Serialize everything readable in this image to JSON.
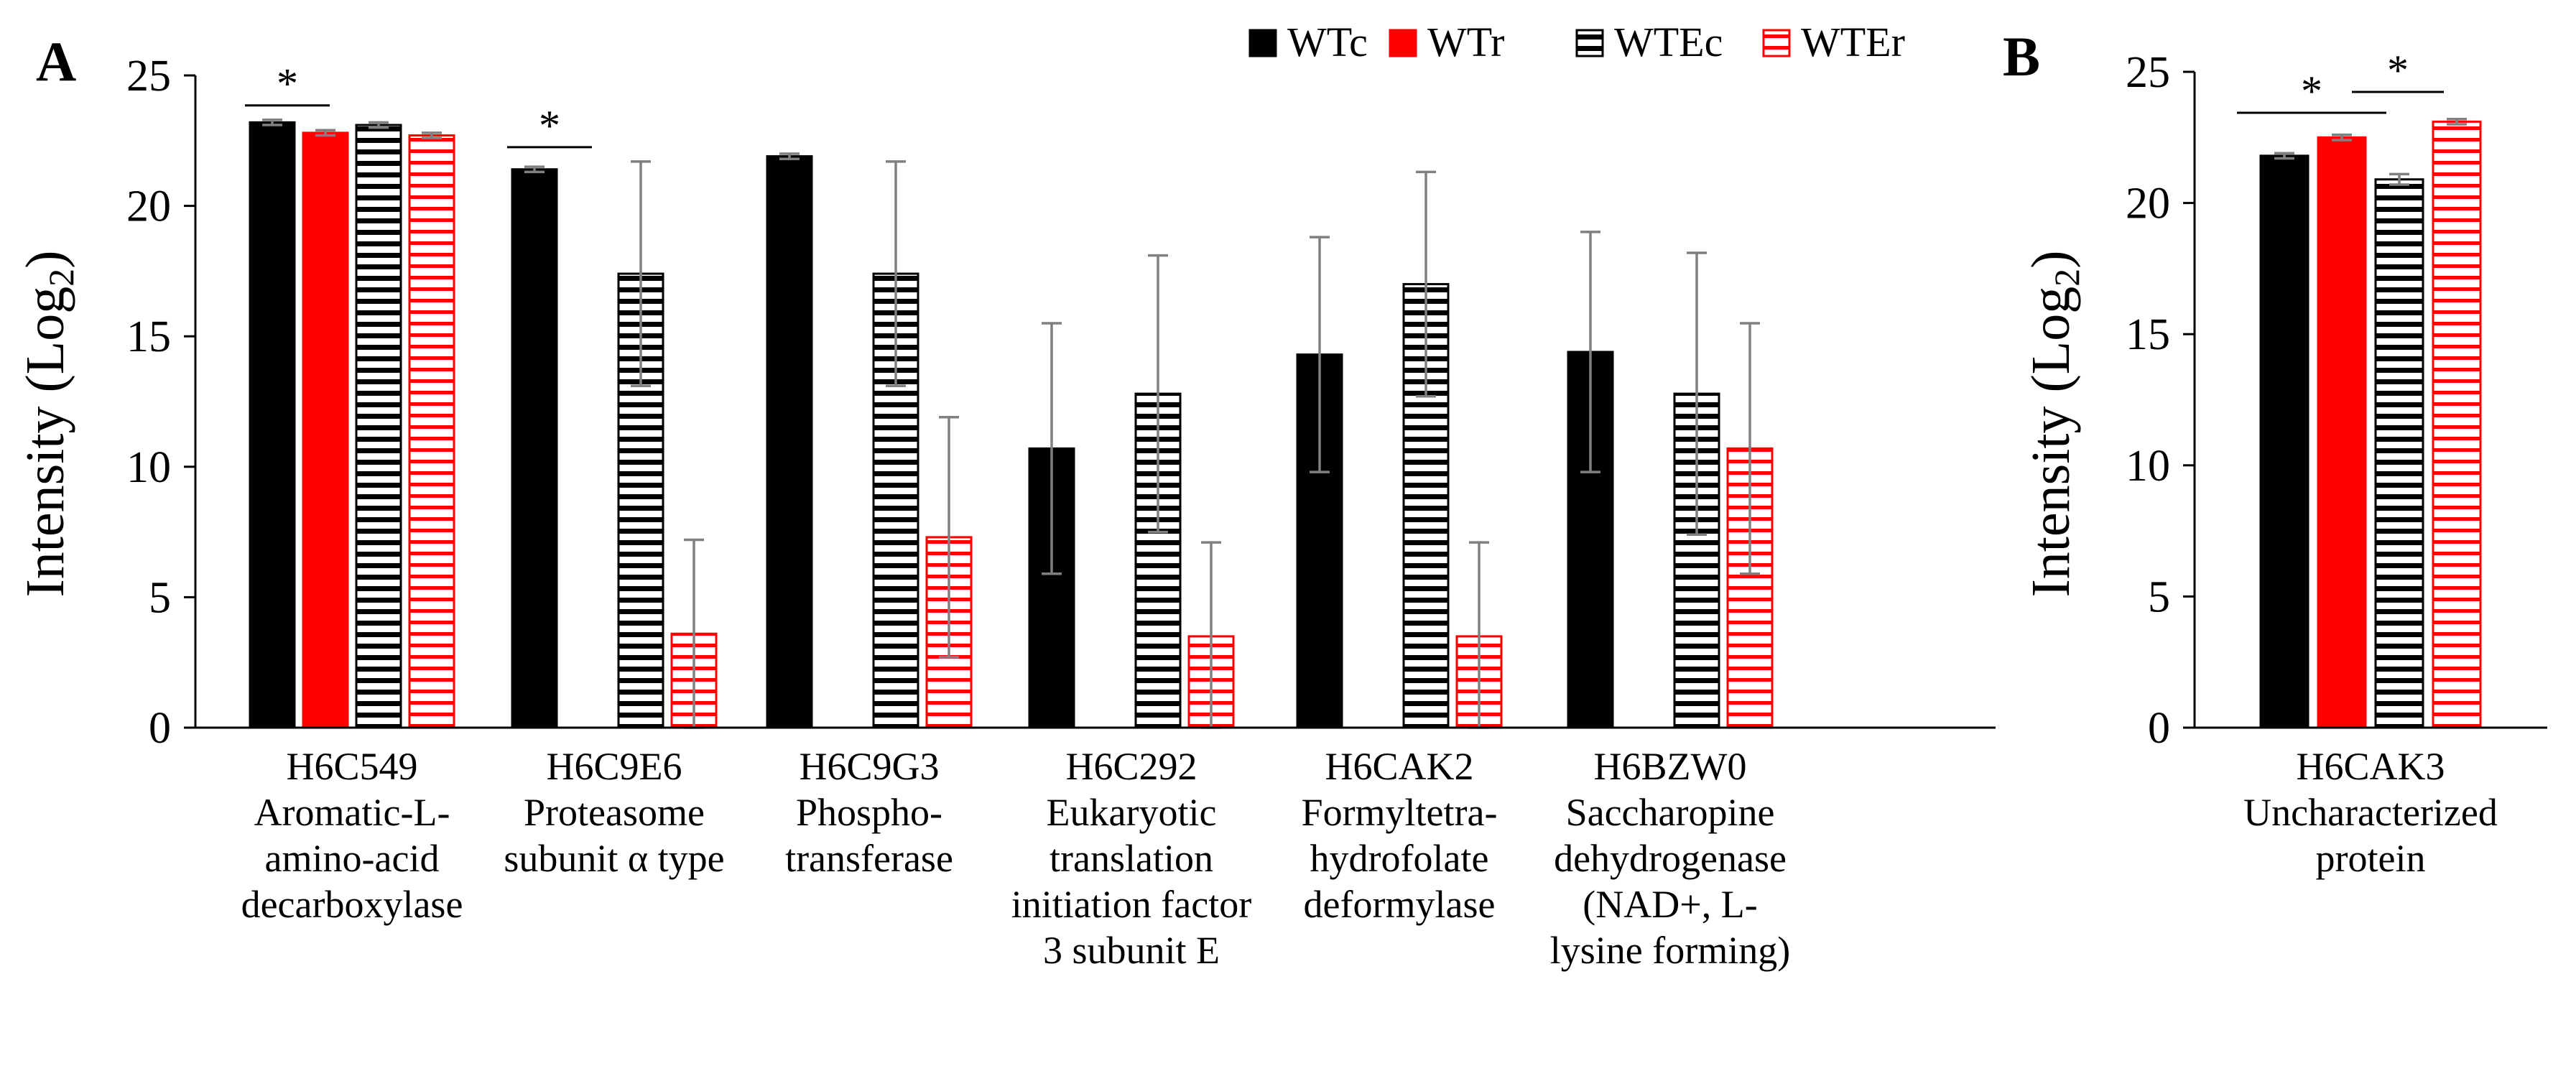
{
  "colors": {
    "wtc": "#000000",
    "wtr": "#ff0000",
    "wtec": "#000000",
    "wter": "#ff0000",
    "error_bar": "#808080"
  },
  "chart_data": [
    {
      "panel": "A",
      "type": "bar",
      "ylabel": "Intensity (Log",
      "ylabel_sub": "2",
      "ylabel_close": ")",
      "ylim": [
        0,
        25
      ],
      "yticks": [
        "0",
        "5",
        "10",
        "15",
        "20",
        "25"
      ],
      "categories": [
        [
          "H6C549",
          "Aromatic-L-",
          "amino-acid",
          "decarboxylase"
        ],
        [
          "H6C9E6",
          "Proteasome",
          "subunit α type"
        ],
        [
          "H6C9G3",
          "Phospho-",
          "transferase"
        ],
        [
          "H6C292",
          "Eukaryotic",
          "translation",
          "initiation  factor",
          "3 subunit E"
        ],
        [
          "H6CAK2",
          "Formyltetra-",
          "hydrofolate",
          "deformylase"
        ],
        [
          "H6BZW0",
          "Saccharopine",
          "dehydrogenase",
          "(NAD+, L-",
          "lysine forming)"
        ]
      ],
      "series": [
        {
          "name": "WTc",
          "values": [
            23.2,
            21.4,
            21.9,
            10.7,
            14.3,
            14.4
          ],
          "errors": [
            0.1,
            0.1,
            0.1,
            4.8,
            4.5,
            4.6
          ]
        },
        {
          "name": "WTr",
          "values": [
            22.8,
            0,
            0,
            0,
            0,
            0
          ],
          "errors": [
            0.1,
            0,
            0,
            0,
            0,
            0
          ]
        },
        {
          "name": "WTEc",
          "values": [
            23.1,
            17.4,
            17.4,
            12.8,
            17.0,
            12.8
          ],
          "errors": [
            0.1,
            4.3,
            4.3,
            5.3,
            4.3,
            5.4
          ]
        },
        {
          "name": "WTEr",
          "values": [
            22.7,
            3.6,
            7.3,
            3.5,
            3.5,
            10.7
          ],
          "errors": [
            0.1,
            3.6,
            4.6,
            3.6,
            3.6,
            4.8
          ]
        }
      ],
      "significance": [
        {
          "group": 0,
          "from": 0,
          "to": 1,
          "label": "*"
        },
        {
          "group": 1,
          "from": 0,
          "to": 1,
          "label": "*"
        }
      ]
    },
    {
      "panel": "B",
      "type": "bar",
      "ylabel": "Intensity (Log",
      "ylabel_sub": "2",
      "ylabel_close": ")",
      "ylim": [
        0,
        25
      ],
      "yticks": [
        "0",
        "5",
        "10",
        "15",
        "20",
        "25"
      ],
      "categories": [
        [
          "H6CAK3",
          "Uncharacterized",
          "protein"
        ]
      ],
      "series": [
        {
          "name": "WTc",
          "values": [
            21.8
          ],
          "errors": [
            0.1
          ]
        },
        {
          "name": "WTr",
          "values": [
            22.5
          ],
          "errors": [
            0.1
          ]
        },
        {
          "name": "WTEc",
          "values": [
            20.9
          ],
          "errors": [
            0.2
          ]
        },
        {
          "name": "WTEr",
          "values": [
            23.1
          ],
          "errors": [
            0.1
          ]
        }
      ],
      "significance": [
        {
          "group": 0,
          "from": 0,
          "to": 2,
          "label": "*"
        },
        {
          "group": 0,
          "from": 2,
          "to": 3,
          "label": "*"
        }
      ]
    }
  ],
  "legend": [
    "WTc",
    "WTr",
    "WTEc",
    "WTEr"
  ]
}
